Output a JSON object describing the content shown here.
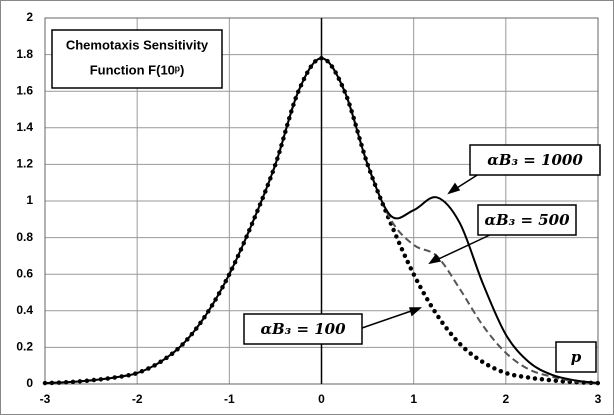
{
  "chart_data": {
    "type": "line",
    "title": [
      "Chemotaxis Sensitivity",
      "Function F(10ᵖ)"
    ],
    "x_label": "p",
    "x": [
      -3,
      -2.75,
      -2.5,
      -2.25,
      -2,
      -1.75,
      -1.5,
      -1.25,
      -1,
      -0.75,
      -0.5,
      -0.25,
      0,
      0.25,
      0.5,
      0.75,
      1,
      1.25,
      1.5,
      1.75,
      2,
      2.25,
      2.5,
      2.75,
      3
    ],
    "series": [
      {
        "name": "αB₃ = 1000",
        "color": "#000000",
        "style": "solid",
        "values": [
          0.005,
          0.01,
          0.02,
          0.035,
          0.06,
          0.12,
          0.22,
          0.38,
          0.6,
          0.88,
          1.2,
          1.6,
          1.78,
          1.6,
          1.2,
          0.92,
          0.95,
          1.02,
          0.88,
          0.55,
          0.27,
          0.12,
          0.05,
          0.02,
          0.005
        ]
      },
      {
        "name": "αB₃ = 500",
        "color": "#555555",
        "style": "dashed",
        "values": [
          0.005,
          0.01,
          0.02,
          0.035,
          0.06,
          0.12,
          0.22,
          0.38,
          0.6,
          0.88,
          1.2,
          1.6,
          1.78,
          1.6,
          1.2,
          0.9,
          0.76,
          0.7,
          0.52,
          0.32,
          0.17,
          0.08,
          0.04,
          0.015,
          0.005
        ]
      },
      {
        "name": "αB₃ = 100",
        "color": "#000000",
        "style": "dotted",
        "values": [
          0.005,
          0.01,
          0.02,
          0.035,
          0.06,
          0.12,
          0.22,
          0.38,
          0.6,
          0.88,
          1.2,
          1.6,
          1.78,
          1.6,
          1.2,
          0.88,
          0.6,
          0.38,
          0.22,
          0.12,
          0.06,
          0.035,
          0.02,
          0.01,
          0.005
        ]
      }
    ],
    "xlim": [
      -3,
      3
    ],
    "xticks": [
      -3,
      -2,
      -1,
      0,
      1,
      2,
      3
    ],
    "ylim": [
      0,
      2
    ],
    "yticks": [
      0,
      0.2,
      0.4,
      0.6,
      0.8,
      1,
      1.2,
      1.4,
      1.6,
      1.8,
      2
    ],
    "grid": true
  }
}
